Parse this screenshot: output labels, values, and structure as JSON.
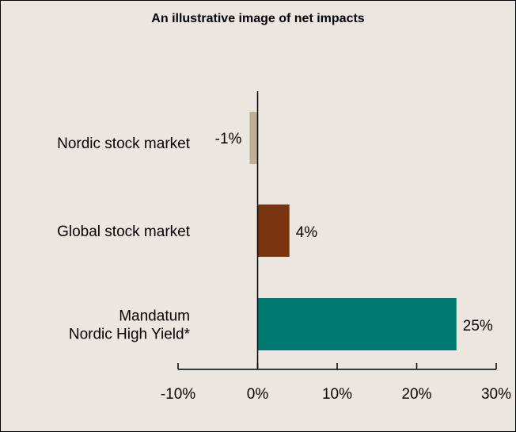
{
  "chart_data": {
    "type": "barh",
    "title": "An illustrative image of net impacts",
    "categories": [
      "Nordic stock market",
      "Global stock market",
      "Mandatum\nNordic High Yield*"
    ],
    "values": [
      -1,
      4,
      25
    ],
    "value_labels": [
      "-1%",
      "4%",
      "25%"
    ],
    "colors": [
      "#bfb093",
      "#7a3510",
      "#007a70"
    ],
    "xlim": [
      -10,
      30
    ],
    "xticks": [
      {
        "value": -10,
        "label": "-10%"
      },
      {
        "value": 0,
        "label": "0%"
      },
      {
        "value": 10,
        "label": "10%"
      },
      {
        "value": 20,
        "label": "20%"
      },
      {
        "value": 30,
        "label": "30%"
      }
    ]
  }
}
